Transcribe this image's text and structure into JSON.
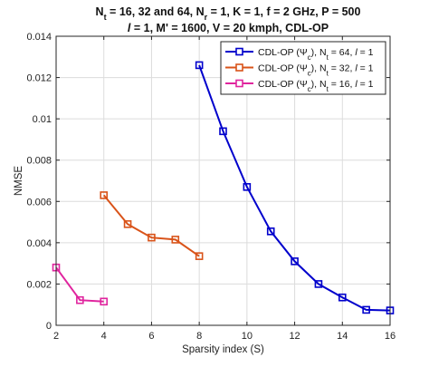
{
  "chart_data": {
    "type": "line",
    "title_lines": [
      "N_t = 16, 32 and 64, N_r = 1, K = 1, f = 2 GHz, P = 500",
      "l = 1, M' = 1600, V = 20 kmph, CDL-OP"
    ],
    "xlabel": "Sparsity index (S)",
    "ylabel": "NMSE",
    "xlim": [
      2,
      16
    ],
    "ylim": [
      0,
      0.014
    ],
    "xticks": [
      2,
      4,
      6,
      8,
      10,
      12,
      14,
      16
    ],
    "yticks": [
      0,
      0.002,
      0.004,
      0.006,
      0.008,
      0.01,
      0.012,
      0.014
    ],
    "grid": true,
    "legend_position": "top-right",
    "series": [
      {
        "name": "CDL-OP (Ψc), Nt = 64, l = 1",
        "legend": {
          "main": "CDL-OP  (Ψ",
          "sub1": "c",
          "mid": "), N",
          "sub2": "t",
          "tail": " = 64, ",
          "italic": "l",
          "end": " = 1"
        },
        "color": "#0000cc",
        "x": [
          8,
          9,
          10,
          11,
          12,
          13,
          14,
          15,
          16
        ],
        "y": [
          0.0126,
          0.0094,
          0.0067,
          0.00455,
          0.0031,
          0.002,
          0.00135,
          0.00075,
          0.00072
        ]
      },
      {
        "name": "CDL-OP (Ψc), Nt = 32, l = 1",
        "legend": {
          "main": "CDL-OP  (Ψ",
          "sub1": "c",
          "mid": "), N",
          "sub2": "t",
          "tail": " = 32, ",
          "italic": "l",
          "end": " = 1"
        },
        "color": "#d95319",
        "x": [
          4,
          5,
          6,
          7,
          8
        ],
        "y": [
          0.0063,
          0.0049,
          0.00425,
          0.00415,
          0.00335
        ]
      },
      {
        "name": "CDL-OP (Ψc), Nt = 16, l = 1",
        "legend": {
          "main": "CDL-OP  (Ψ",
          "sub1": "c",
          "mid": "), N",
          "sub2": "t",
          "tail": " = 16, ",
          "italic": "l",
          "end": " = 1"
        },
        "color": "#e0249e",
        "x": [
          2,
          3,
          4
        ],
        "y": [
          0.0028,
          0.00122,
          0.00115
        ]
      }
    ]
  }
}
